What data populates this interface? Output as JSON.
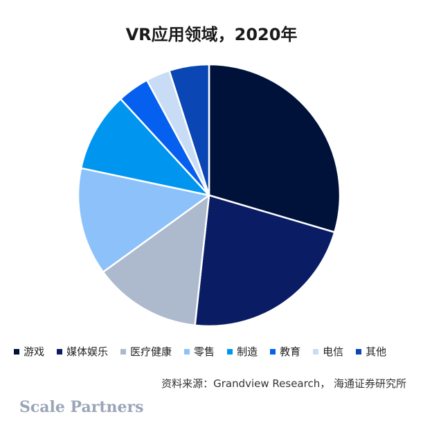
{
  "chart_data": {
    "type": "pie",
    "title": "VR应用领域，2020年",
    "categories": [
      "游戏",
      "媒体娱乐",
      "医疗健康",
      "零售",
      "制造",
      "教育",
      "电信",
      "其他"
    ],
    "values": [
      30.0,
      22.5,
      13.5,
      13.5,
      10.0,
      4.0,
      3.0,
      5.0
    ],
    "colors": [
      "#00123a",
      "#0a1c64",
      "#adb9cd",
      "#8cc1fa",
      "#0096f0",
      "#0560f0",
      "#c8dcf5",
      "#0a46b4"
    ],
    "legend_position": "bottom",
    "start_angle_deg": 0,
    "direction": "clockwise"
  },
  "source_text": "资料来源：Grandview Research， 海通证券研究所",
  "watermark": "Scale Partners"
}
